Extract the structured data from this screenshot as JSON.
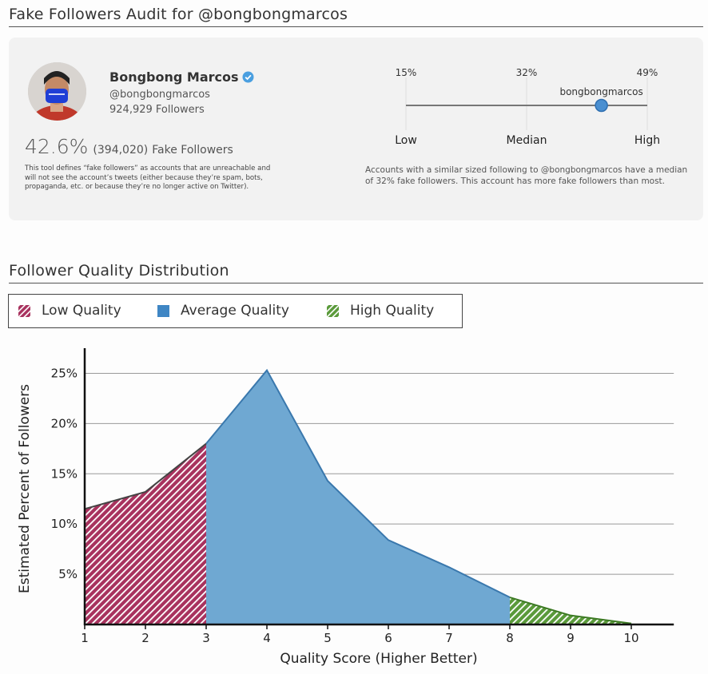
{
  "section1": {
    "title": "Fake Followers Audit for @bongbongmarcos"
  },
  "profile": {
    "name": "Bongbong Marcos",
    "handle": "@bongbongmarcos",
    "followers": "924,929 Followers",
    "fake_percent": "42.6%",
    "fake_count": "(394,020)",
    "fake_label": "Fake Followers",
    "description": "This tool defines “fake followers” as accounts that are unreachable and will not see the account’s tweets (either because they’re spam, bots, propaganda, etc. or because they’re no longer active on Twitter).",
    "icons": {
      "verified": "verified-badge-icon"
    },
    "colors": {
      "verified": "#4a9fe0"
    }
  },
  "comparison": {
    "low_value": "15%",
    "median_value": "32%",
    "high_value": "49%",
    "low_label": "Low",
    "median_label": "Median",
    "high_label": "High",
    "marker_label": "bongbongmarcos",
    "marker_fraction": 0.81,
    "summary": "Accounts with a similar sized following to @bongbongmarcos have a median of 32% fake followers. This account has more fake followers than most."
  },
  "section2": {
    "title": "Follower Quality Distribution"
  },
  "legend": {
    "low": "Low Quality",
    "average": "Average Quality",
    "high": "High Quality",
    "colors": {
      "low": "#a8325e",
      "average": "#4d8ec6",
      "high": "#5a9a3a"
    }
  },
  "chart_data": {
    "type": "area",
    "xlabel": "Quality Score (Higher Better)",
    "ylabel": "Estimated Percent of Followers",
    "x": [
      1,
      2,
      3,
      4,
      5,
      6,
      7,
      8,
      9,
      10
    ],
    "values": [
      11.5,
      13.2,
      18.0,
      25.3,
      14.3,
      8.4,
      5.7,
      2.7,
      0.9,
      0.1
    ],
    "ylim": [
      0,
      27.5
    ],
    "xlim": [
      1,
      10.7
    ],
    "yticks": [
      "5%",
      "10%",
      "15%",
      "20%",
      "25%"
    ],
    "ytick_values": [
      5,
      10,
      15,
      20,
      25
    ],
    "xticks": [
      "1",
      "2",
      "3",
      "4",
      "5",
      "6",
      "7",
      "8",
      "9",
      "10"
    ],
    "regions": [
      {
        "name": "Low Quality",
        "from": 1,
        "to": 3,
        "fill": "#a8325e",
        "pattern": "hatched"
      },
      {
        "name": "Average Quality",
        "from": 3,
        "to": 8,
        "fill": "#6fa8d2",
        "pattern": "solid"
      },
      {
        "name": "High Quality",
        "from": 8,
        "to": 10,
        "fill": "#5a9a3a",
        "pattern": "hatched"
      }
    ],
    "grid": true
  }
}
